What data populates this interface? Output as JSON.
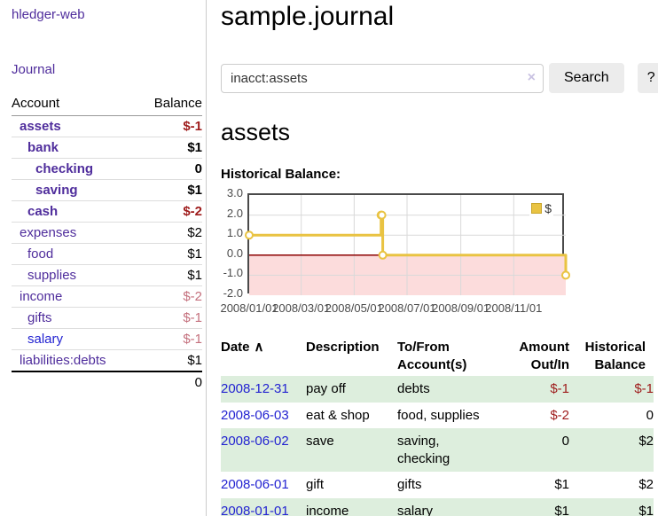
{
  "app": {
    "title": "hledger-web"
  },
  "sidebar": {
    "journal_label": "Journal",
    "table": {
      "headers": [
        "Account",
        "Balance"
      ],
      "accounts": [
        {
          "name": "assets",
          "balance": "$-1"
        },
        {
          "name": "bank",
          "balance": "$1"
        },
        {
          "name": "checking",
          "balance": "0"
        },
        {
          "name": "saving",
          "balance": "$1"
        },
        {
          "name": "cash",
          "balance": "$-2"
        },
        {
          "name": "expenses",
          "balance": "$2"
        },
        {
          "name": "food",
          "balance": "$1"
        },
        {
          "name": "supplies",
          "balance": "$1"
        },
        {
          "name": "income",
          "balance": "$-2"
        },
        {
          "name": "gifts",
          "balance": "$-1"
        },
        {
          "name": "salary",
          "balance": "$-1"
        },
        {
          "name": "liabilities:debts",
          "balance": "$1"
        }
      ],
      "total": "0"
    }
  },
  "main": {
    "title": "sample.journal",
    "search": {
      "value": "inacct:assets",
      "clear_icon": "×",
      "button_label": "Search",
      "help_label": "?"
    },
    "heading": "assets",
    "chart_label": "Historical Balance:",
    "register": {
      "headers": {
        "date": "Date",
        "sort_icon": "∧",
        "description": "Description",
        "accounts": "To/From Account(s)",
        "amount": "Amount Out/In",
        "balance": "Historical Balance"
      },
      "rows": [
        {
          "date": "2008-12-31",
          "description": "pay off",
          "accounts": "debts",
          "amount": "$-1",
          "balance": "$-1"
        },
        {
          "date": "2008-06-03",
          "description": "eat & shop",
          "accounts": "food, supplies",
          "amount": "$-2",
          "balance": "0"
        },
        {
          "date": "2008-06-02",
          "description": "save",
          "accounts": "saving, checking",
          "amount": "0",
          "balance": "$2"
        },
        {
          "date": "2008-06-01",
          "description": "gift",
          "accounts": "gifts",
          "amount": "$1",
          "balance": "$2"
        },
        {
          "date": "2008-01-01",
          "description": "income",
          "accounts": "salary",
          "amount": "$1",
          "balance": "$1"
        }
      ]
    }
  },
  "chart_data": {
    "type": "line",
    "step": true,
    "title": "Historical Balance:",
    "series": [
      {
        "name": "$",
        "color": "#e9c342",
        "points": [
          [
            "2008-01-01",
            1
          ],
          [
            "2008-06-01",
            2
          ],
          [
            "2008-06-02",
            2
          ],
          [
            "2008-06-03",
            0
          ],
          [
            "2008-12-31",
            -1
          ]
        ]
      }
    ],
    "xlim": [
      "2008-01-01",
      "2008-12-31"
    ],
    "ylim": [
      -2,
      3
    ],
    "x_tick_dates": [
      "2008-01-01",
      "2008-03-01",
      "2008-05-01",
      "2008-07-01",
      "2008-09-01",
      "2008-11-01"
    ],
    "x_tick_labels": [
      "2008/01/01",
      "2008/03/01",
      "2008/05/01",
      "2008/07/01",
      "2008/09/01",
      "2008/11/01"
    ],
    "y_ticks": [
      "3.0",
      "2.0",
      "1.0",
      "0.0",
      "-1.0",
      "-2.0"
    ],
    "grid": true,
    "legend_position": "top-right",
    "negative_fill": "#fcdcdc",
    "zero_line": "#8b0000"
  },
  "colors": {
    "accent_purple": "#4f2d9c",
    "link_blue": "#2323d1",
    "negative_red": "#9e1b1b",
    "soft_negative_red": "#c4707d",
    "row_stripe_green": "#ddeedd",
    "chart_gold": "#e9c342",
    "chart_negative_pink": "#fcdcdc",
    "zero_line_red": "#8b0000",
    "button_gray": "#ececec"
  }
}
